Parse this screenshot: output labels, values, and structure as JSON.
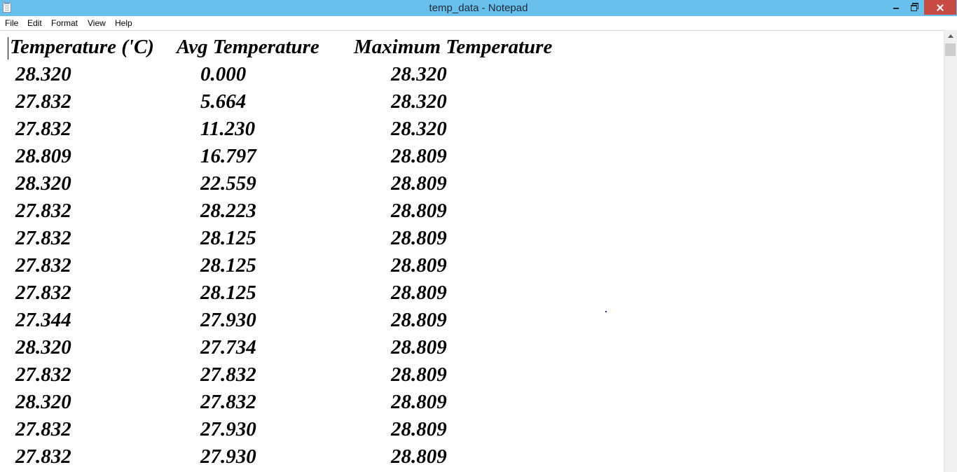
{
  "window": {
    "title": "temp_data - Notepad",
    "titlebar_color": "#6ac0ec",
    "close_button_color": "#c74a44",
    "icons": [
      "notepad-icon",
      "minimize-icon",
      "restore-icon",
      "close-icon"
    ]
  },
  "menu": {
    "file": "File",
    "edit": "Edit",
    "format": "Format",
    "view": "View",
    "help": "Help"
  },
  "document": {
    "headers": {
      "temperature": "Temperature ('C)",
      "avg": "Avg Temperature",
      "max": "Maximum Temperature"
    },
    "rows": [
      {
        "temp": "28.320",
        "avg": "0.000",
        "max": "28.320"
      },
      {
        "temp": "27.832",
        "avg": "5.664",
        "max": "28.320"
      },
      {
        "temp": "27.832",
        "avg": "11.230",
        "max": "28.320"
      },
      {
        "temp": "28.809",
        "avg": "16.797",
        "max": "28.809"
      },
      {
        "temp": "28.320",
        "avg": "22.559",
        "max": "28.809"
      },
      {
        "temp": "27.832",
        "avg": "28.223",
        "max": "28.809"
      },
      {
        "temp": "27.832",
        "avg": "28.125",
        "max": "28.809"
      },
      {
        "temp": "27.832",
        "avg": "28.125",
        "max": "28.809"
      },
      {
        "temp": "27.832",
        "avg": "28.125",
        "max": "28.809"
      },
      {
        "temp": "27.344",
        "avg": "27.930",
        "max": "28.809"
      },
      {
        "temp": "28.320",
        "avg": "27.734",
        "max": "28.809"
      },
      {
        "temp": "27.832",
        "avg": "27.832",
        "max": "28.809"
      },
      {
        "temp": "28.320",
        "avg": "27.832",
        "max": "28.809"
      },
      {
        "temp": "27.832",
        "avg": "27.930",
        "max": "28.809"
      },
      {
        "temp": "27.832",
        "avg": "27.930",
        "max": "28.809"
      }
    ]
  }
}
